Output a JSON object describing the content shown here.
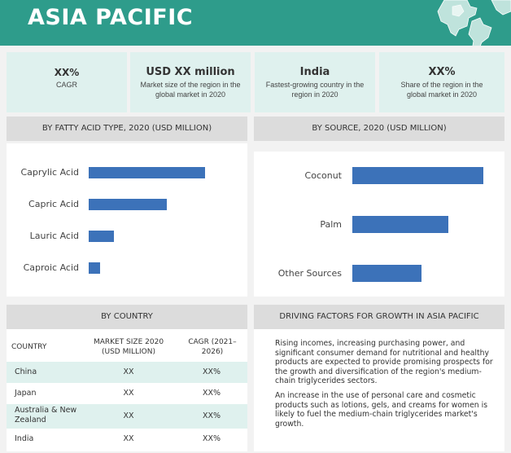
{
  "header": {
    "title": "ASIA PACIFIC",
    "accent": "#2e9c8b"
  },
  "kpis": [
    {
      "value": "XX%",
      "desc": "CAGR"
    },
    {
      "value": "USD XX million",
      "desc": "Market size of the region in the global market in 2020"
    },
    {
      "value": "India",
      "desc": "Fastest-growing country in the region in 2020"
    },
    {
      "value": "XX%",
      "desc": "Share of the region in the global market in 2020"
    }
  ],
  "sections": {
    "fatty_acid": "BY FATTY ACID TYPE, 2020 (USD MILLION)",
    "source": "BY SOURCE, 2020 (USD MILLION)",
    "country": "BY COUNTRY",
    "drivers": "DRIVING FACTORS FOR GROWTH IN ASIA PACIFIC"
  },
  "chart_data": [
    {
      "type": "bar",
      "orientation": "horizontal",
      "title": "BY FATTY ACID TYPE, 2020 (USD MILLION)",
      "categories": [
        "Caprylic Acid",
        "Capric Acid",
        "Lauric Acid",
        "Caproic Acid"
      ],
      "values": [
        100,
        67,
        22,
        10
      ],
      "bar_color": "#3c72b9",
      "grid": false
    },
    {
      "type": "bar",
      "orientation": "horizontal",
      "title": "BY SOURCE, 2020 (USD MILLION)",
      "categories": [
        "Coconut",
        "Palm",
        "Other Sources"
      ],
      "values": [
        100,
        73,
        53
      ],
      "bar_color": "#3c72b9",
      "grid": false
    }
  ],
  "table": {
    "headers": [
      "COUNTRY",
      "MARKET SIZE 2020 (USD MILLION)",
      "CAGR (2021–2026)"
    ],
    "rows": [
      {
        "country": "China",
        "size": "XX",
        "cagr": "XX%"
      },
      {
        "country": "Japan",
        "size": "XX",
        "cagr": "XX%"
      },
      {
        "country": "Australia & New Zealand",
        "size": "XX",
        "cagr": "XX%"
      },
      {
        "country": "India",
        "size": "XX",
        "cagr": "XX%"
      }
    ]
  },
  "drivers": {
    "p1": "Rising incomes, increasing purchasing power, and significant consumer demand for nutritional and healthy products are expected to provide promising prospects for the growth and diversification of the region's medium-chain triglycerides sectors.",
    "p2": "An increase in the use of personal care and cosmetic products such as lotions, gels, and creams for women is likely to fuel the medium-chain triglycerides market's growth."
  }
}
